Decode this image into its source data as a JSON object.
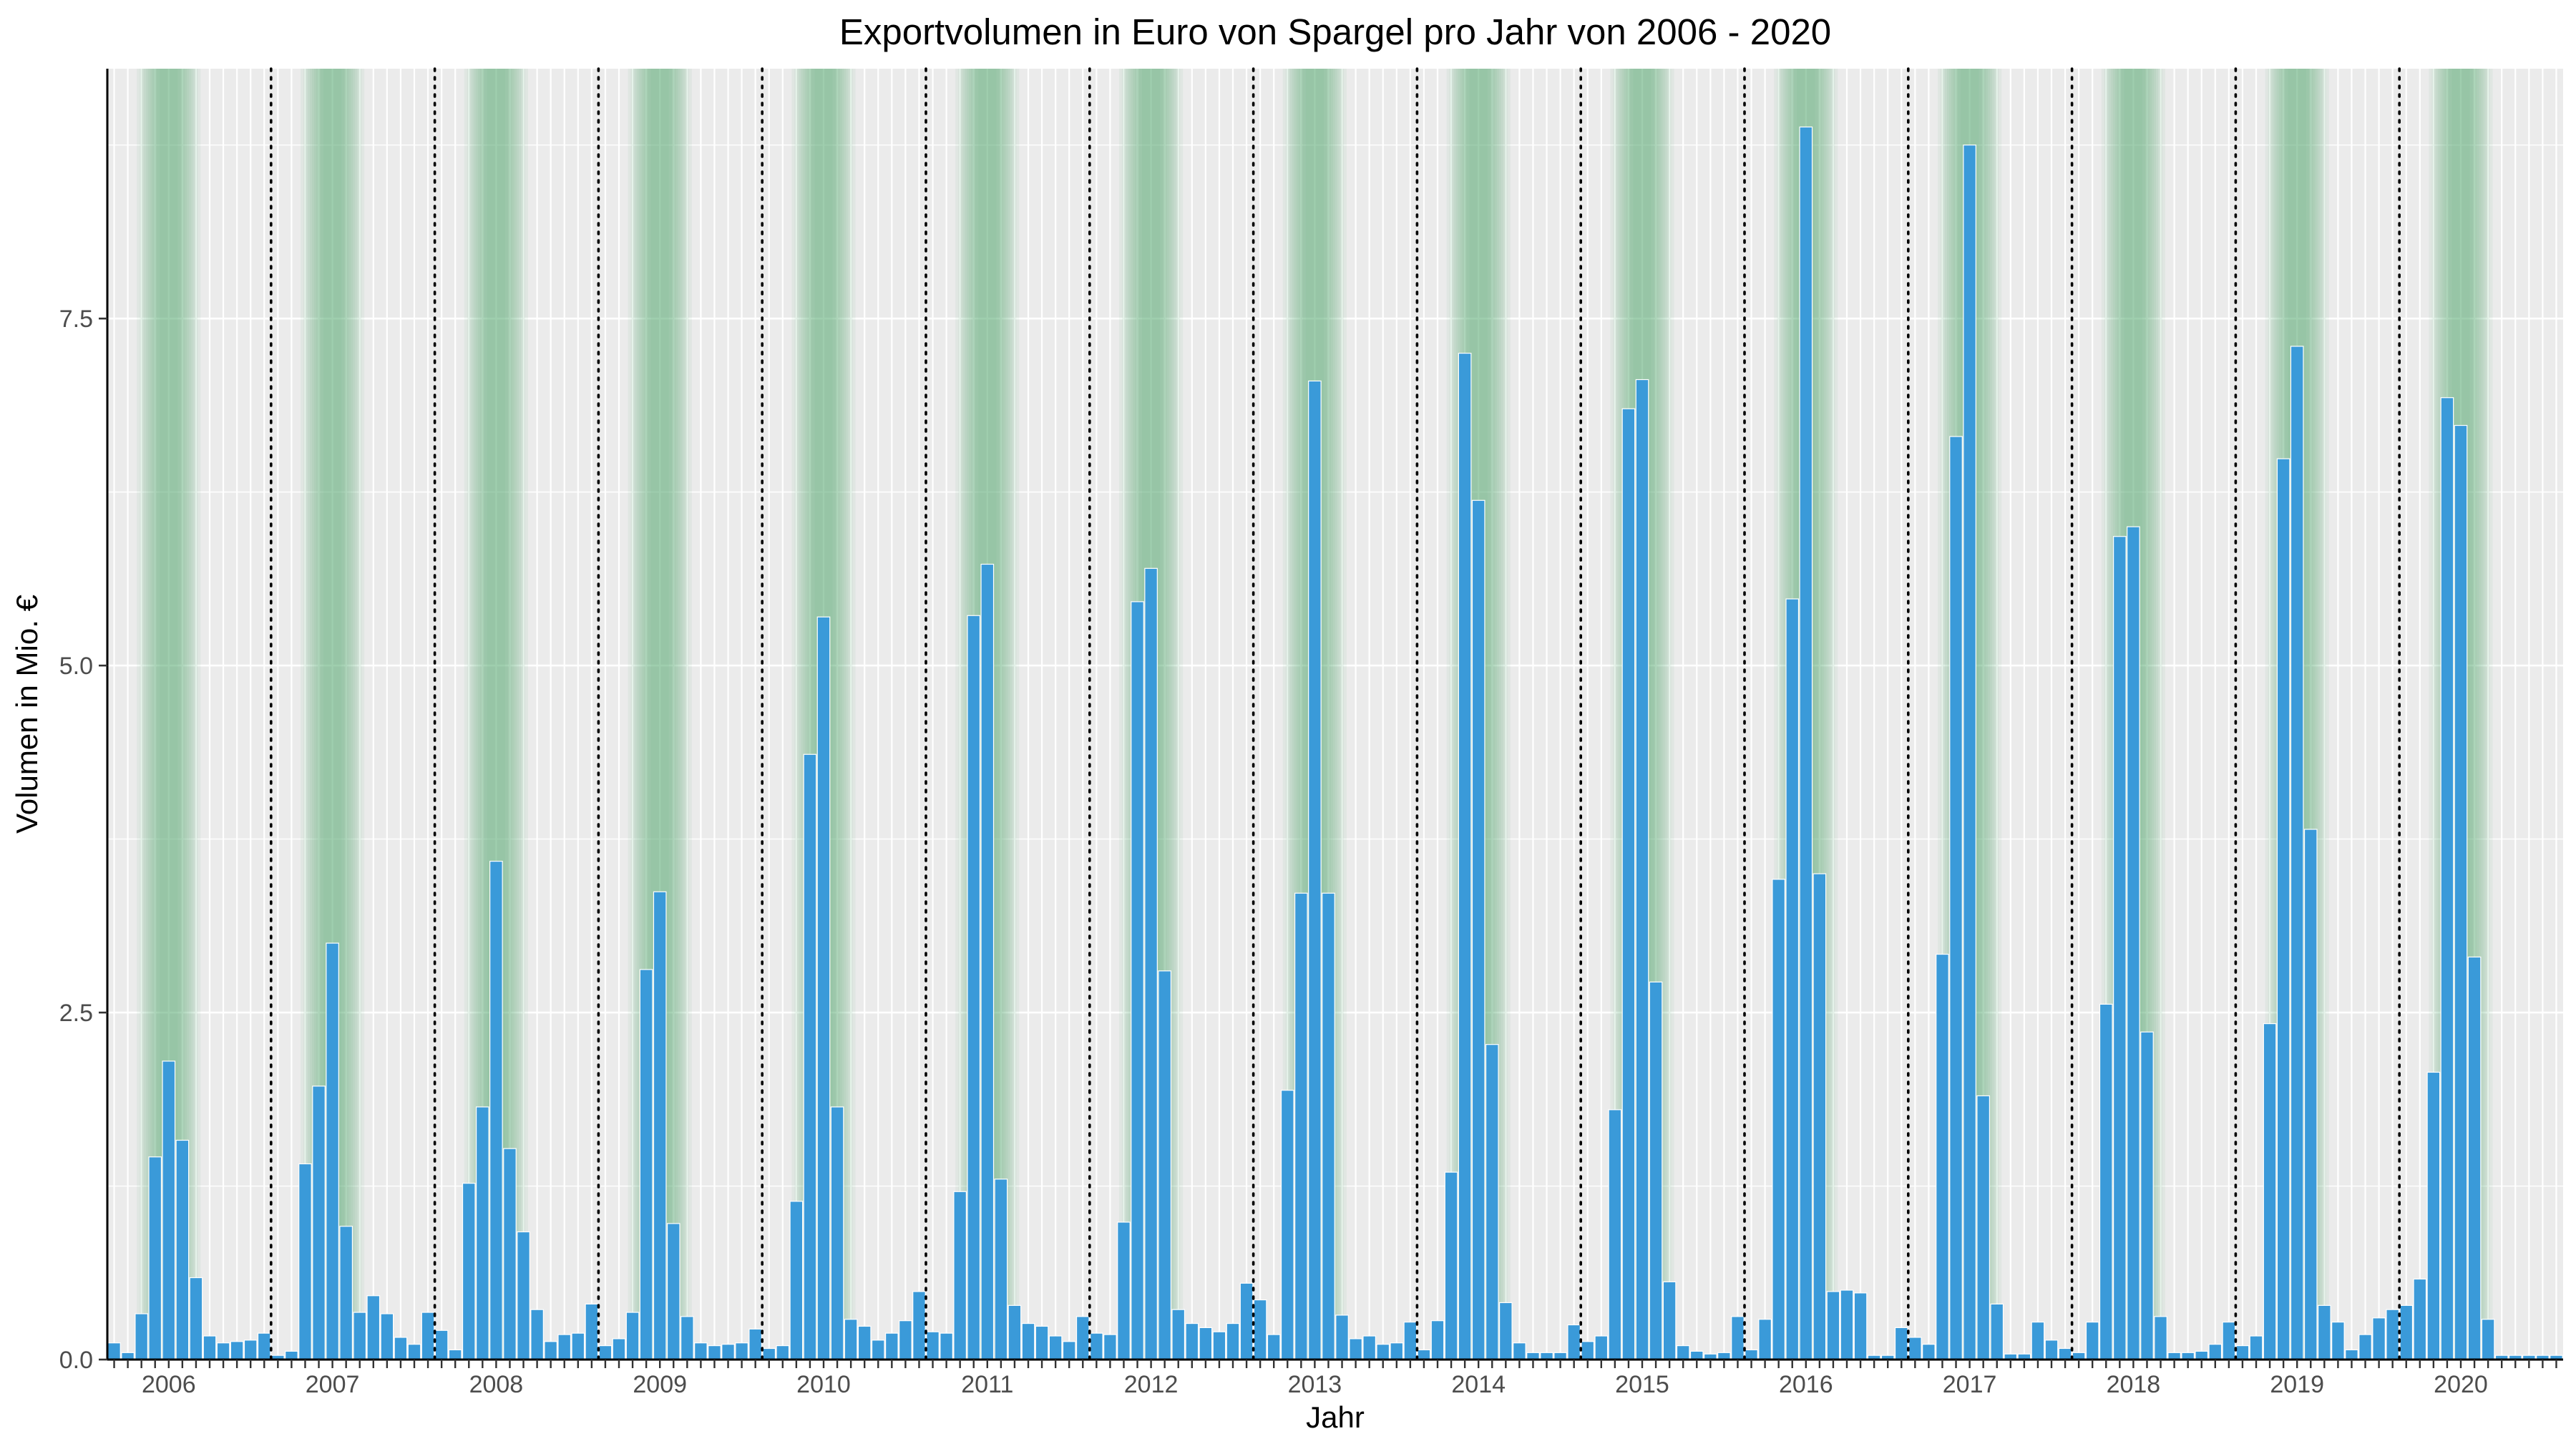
{
  "chart_data": {
    "type": "bar",
    "title": "Exportvolumen in Euro von Spargel pro Jahr von 2006 - 2020",
    "xlabel": "Jahr",
    "ylabel": "Volumen in Mio. €",
    "ylim": [
      0,
      9.3
    ],
    "yticks": [
      0,
      2.5,
      5,
      7.5
    ],
    "ytick_labels": [
      "0.0",
      "2.5",
      "5.0",
      "7.5"
    ],
    "years": [
      "2006",
      "2007",
      "2008",
      "2009",
      "2010",
      "2011",
      "2012",
      "2013",
      "2014",
      "2015",
      "2016",
      "2017",
      "2018",
      "2019",
      "2020"
    ],
    "months_per_year": 12,
    "season_months": [
      3,
      4,
      5
    ],
    "background_color": "#ebebeb",
    "bar_color": "#3a9ad9",
    "season_color": "#5fae7f",
    "grid": "on",
    "legend": "none",
    "values": [
      [
        0.12,
        0.05,
        0.33,
        1.46,
        2.15,
        1.58,
        0.59,
        0.17,
        0.12,
        0.13,
        0.14,
        0.19
      ],
      [
        0.03,
        0.06,
        1.41,
        1.97,
        3.0,
        0.96,
        0.34,
        0.46,
        0.33,
        0.16,
        0.11,
        0.34
      ],
      [
        0.21,
        0.07,
        1.27,
        1.82,
        3.59,
        1.52,
        0.92,
        0.36,
        0.13,
        0.18,
        0.19,
        0.4
      ],
      [
        0.1,
        0.15,
        0.34,
        2.81,
        3.37,
        0.98,
        0.31,
        0.12,
        0.1,
        0.11,
        0.12,
        0.22
      ],
      [
        0.08,
        0.1,
        1.14,
        4.36,
        5.35,
        1.82,
        0.29,
        0.24,
        0.14,
        0.19,
        0.28,
        0.49
      ],
      [
        0.2,
        0.19,
        1.21,
        5.36,
        5.73,
        1.3,
        0.39,
        0.26,
        0.24,
        0.17,
        0.13,
        0.31
      ],
      [
        0.19,
        0.18,
        0.99,
        5.46,
        5.7,
        2.8,
        0.36,
        0.26,
        0.23,
        0.2,
        0.26,
        0.55
      ],
      [
        0.43,
        0.18,
        1.94,
        3.36,
        7.05,
        3.36,
        0.32,
        0.15,
        0.17,
        0.11,
        0.12,
        0.27
      ],
      [
        0.07,
        0.28,
        1.35,
        7.25,
        6.19,
        2.27,
        0.41,
        0.12,
        0.05,
        0.05,
        0.05,
        0.25
      ],
      [
        0.13,
        0.17,
        1.8,
        6.85,
        7.06,
        2.72,
        0.56,
        0.1,
        0.06,
        0.04,
        0.05,
        0.31
      ],
      [
        0.07,
        0.29,
        3.46,
        5.48,
        8.88,
        3.5,
        0.49,
        0.5,
        0.48,
        0.03,
        0.03,
        0.23
      ],
      [
        0.16,
        0.11,
        2.92,
        6.65,
        8.75,
        1.9,
        0.4,
        0.04,
        0.04,
        0.27,
        0.14,
        0.08
      ],
      [
        0.05,
        0.27,
        2.56,
        5.93,
        6.0,
        2.36,
        0.31,
        0.05,
        0.05,
        0.06,
        0.11,
        0.27
      ],
      [
        0.1,
        0.17,
        2.42,
        6.49,
        7.3,
        3.82,
        0.39,
        0.27,
        0.07,
        0.18,
        0.3,
        0.36
      ],
      [
        0.39,
        0.58,
        2.07,
        6.93,
        6.73,
        2.9,
        0.29,
        0.03,
        0.03,
        0.03,
        0.03,
        0.03
      ]
    ]
  }
}
